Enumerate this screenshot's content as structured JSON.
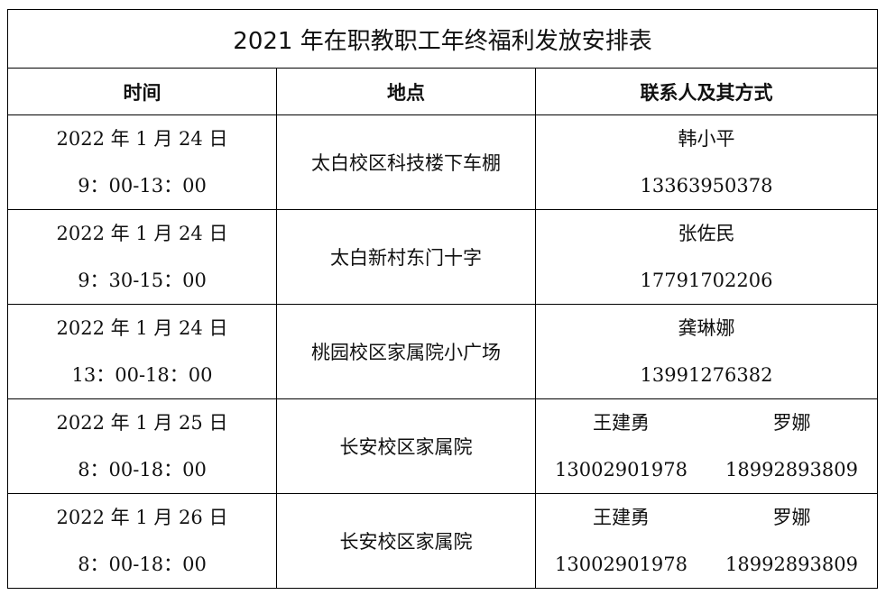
{
  "title": "2021 年在职教职工年终福利发放安排表",
  "headers": [
    "时间",
    "地点",
    "联系人及其方式"
  ],
  "rows": [
    {
      "date": "2022 年 1 月 24 日",
      "time": "9：00-13：00",
      "place": "太白校区科技楼下车棚",
      "contacts": [
        {
          "name": "韩小平",
          "phone": "13363950378"
        }
      ]
    },
    {
      "date": "2022 年 1 月 24 日",
      "time": "9：30-15：00",
      "place": "太白新村东门十字",
      "contacts": [
        {
          "name": "张佐民",
          "phone": "17791702206"
        }
      ]
    },
    {
      "date": "2022 年 1 月 24 日",
      "time": "13：00-18：00",
      "place": "桃园校区家属院小广场",
      "contacts": [
        {
          "name": "龚琳娜",
          "phone": "13991276382"
        }
      ]
    },
    {
      "date": "2022 年 1 月 25 日",
      "time": "8：00-18：00",
      "place": "长安校区家属院",
      "contacts": [
        {
          "name": "王建勇",
          "phone": "13002901978"
        },
        {
          "name": "罗娜",
          "phone": "18992893809"
        }
      ]
    },
    {
      "date": "2022 年 1 月 26 日",
      "time": "8：00-18：00",
      "place": "长安校区家属院",
      "contacts": [
        {
          "name": "王建勇",
          "phone": "13002901978"
        },
        {
          "name": "罗娜",
          "phone": "18992893809"
        }
      ]
    }
  ]
}
